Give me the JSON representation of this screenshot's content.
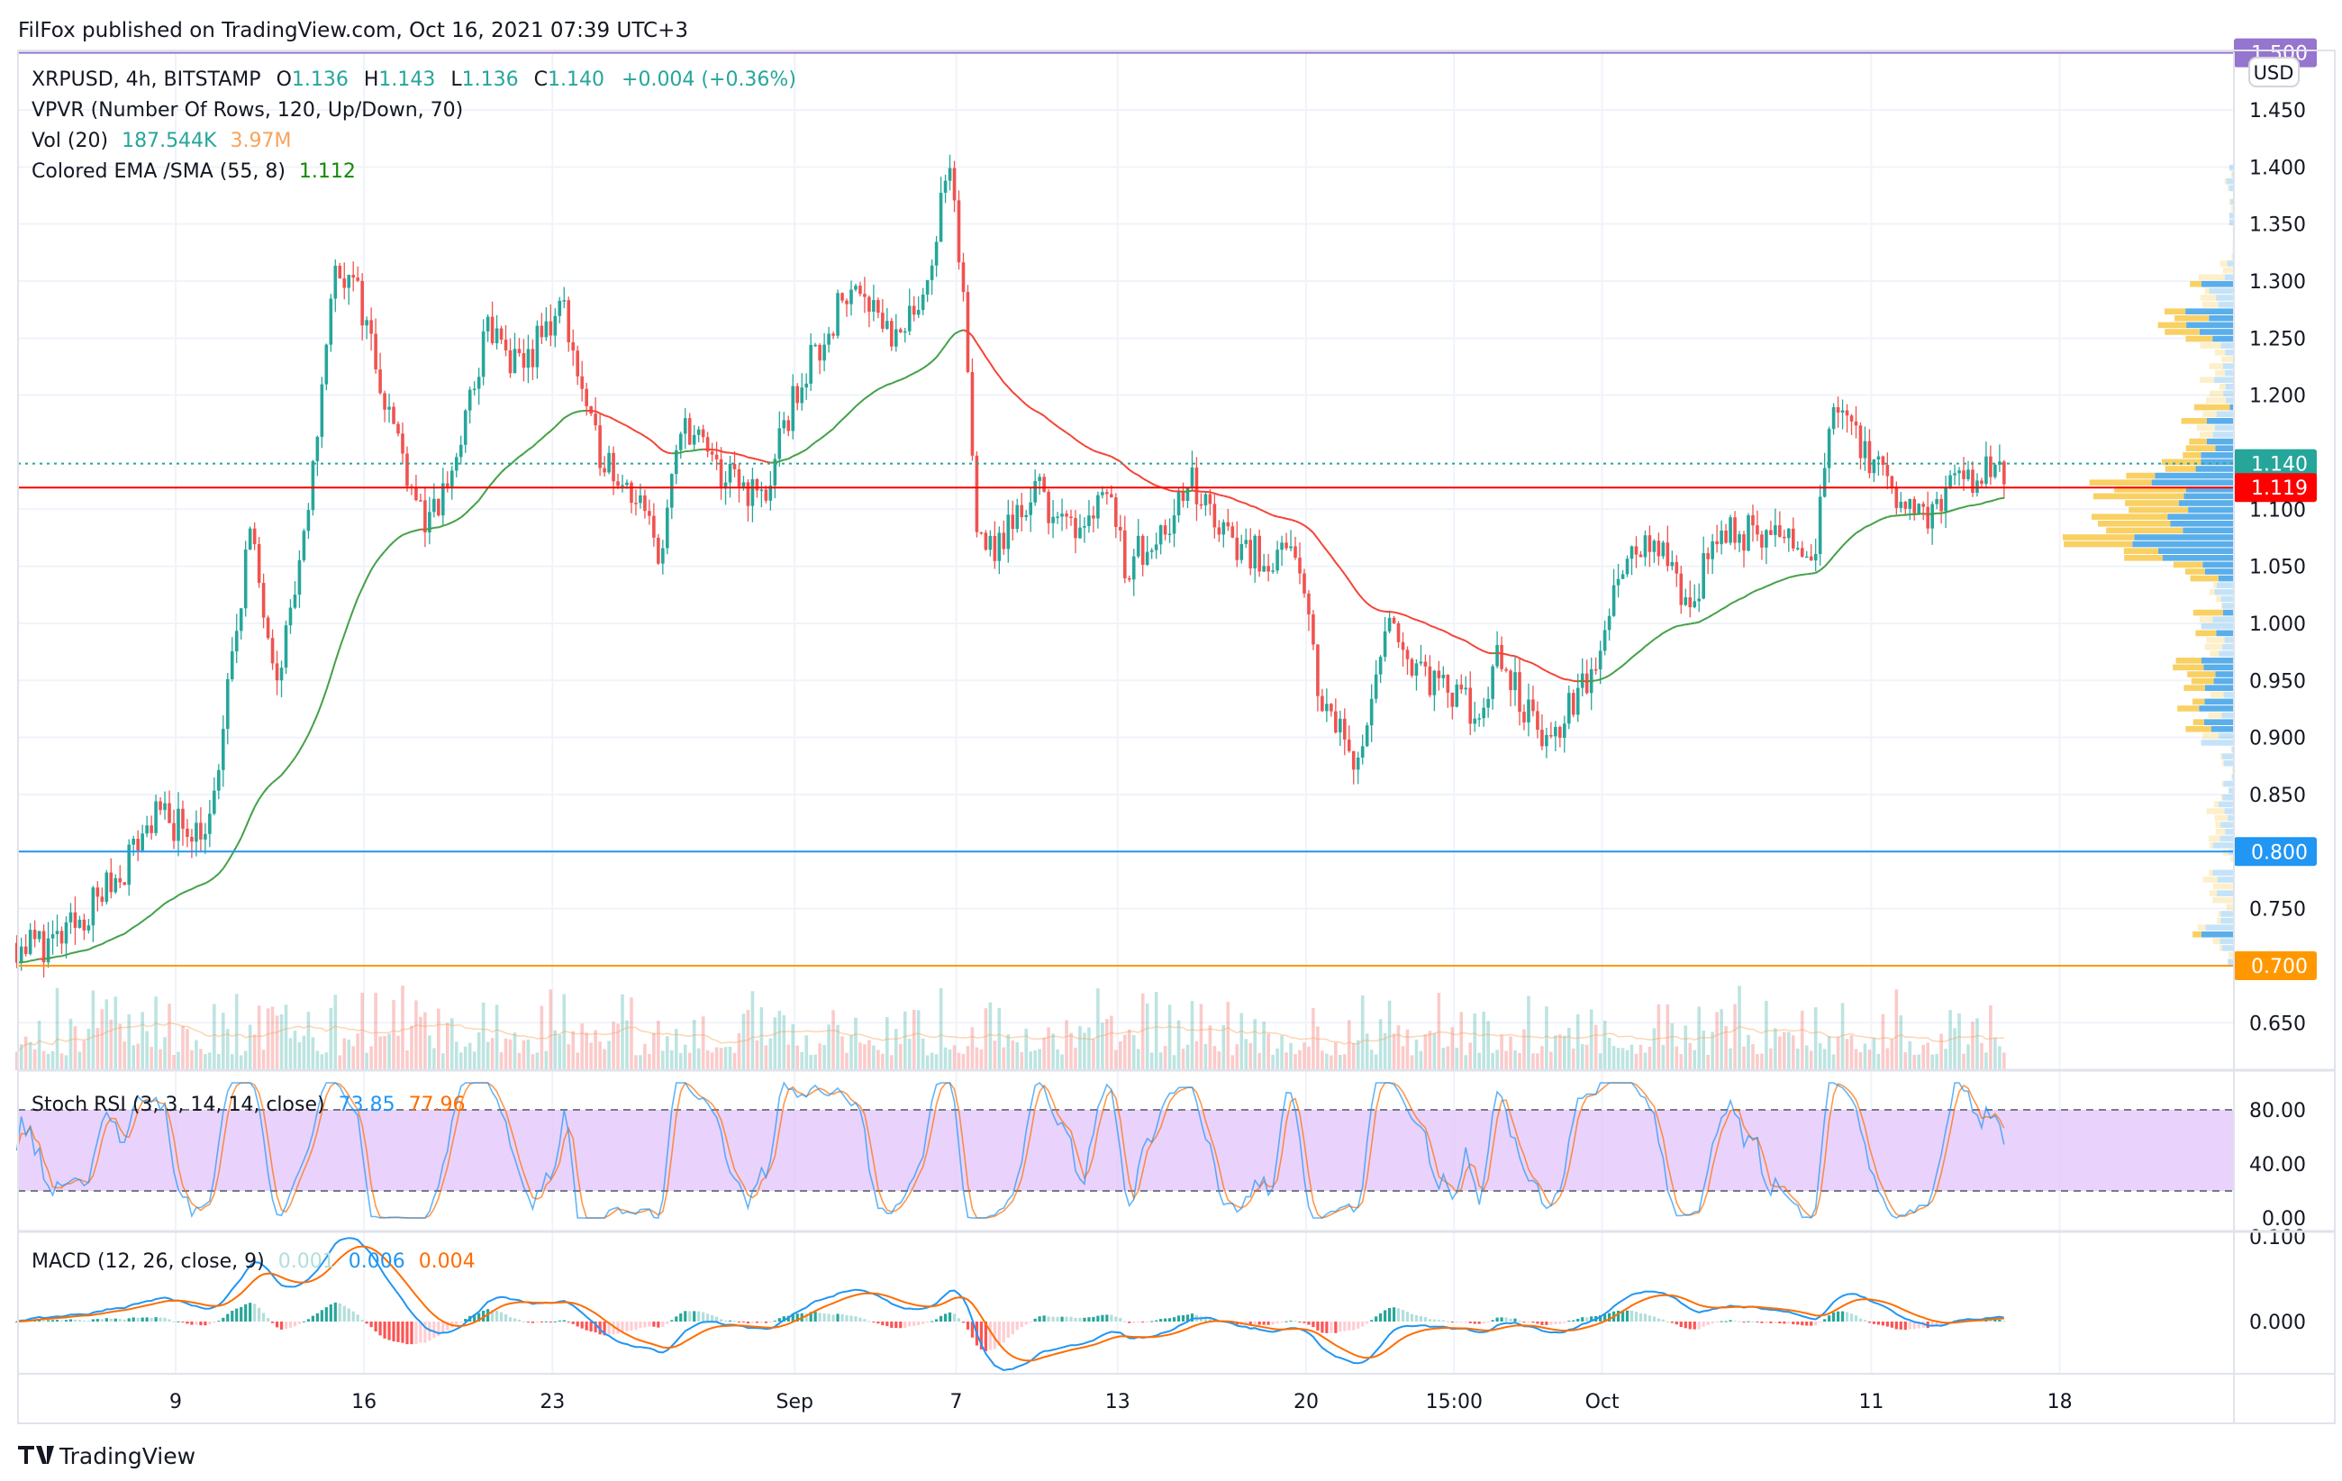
{
  "header": {
    "published": "FilFox published on TradingView.com, Oct 16, 2021 07:39 UTC+3"
  },
  "legend": {
    "symbol": "XRPUSD, 4h, BITSTAMP",
    "o_label": "O",
    "o": "1.136",
    "h_label": "H",
    "h": "1.143",
    "l_label": "L",
    "l": "1.136",
    "c_label": "C",
    "c": "1.140",
    "change": "+0.004 (+0.36%)",
    "vpvr": "VPVR (Number Of Rows, 120, Up/Down, 70)",
    "vol": "Vol (20)",
    "vol_value": "187.544K",
    "vol_ma": "3.97M",
    "ema": "Colored EMA /SMA (55, 8)",
    "ema_value": "1.112",
    "stoch": "Stoch RSI (3, 3, 14, 14, close)",
    "stoch_k": "73.85",
    "stoch_d": "77.96",
    "macd": "MACD (12, 26, close, 9)",
    "macd_hist": "0.001",
    "macd_line": "0.006",
    "macd_signal": "0.004"
  },
  "currency_button": "USD",
  "brand": "TradingView",
  "colors": {
    "up": "#26a69a",
    "down": "#ef5350",
    "ema_up": "#43a047",
    "ema_down": "#f44336",
    "vp_up": "#5aaeea",
    "vp_down": "#f9d063",
    "stoch_k": "#2196f3",
    "stoch_d": "#ff6d00",
    "macd": "#2196f3",
    "signal": "#ff6d00"
  },
  "chart_data": {
    "type": "candlestick",
    "title": "XRPUSD, 4h, BITSTAMP",
    "ylabel": "USD",
    "ylim": [
      0.62,
      1.5
    ],
    "price_ticks": [
      "1.450",
      "1.400",
      "1.350",
      "1.300",
      "1.250",
      "1.200",
      "1.100",
      "1.050",
      "1.000",
      "0.950",
      "0.900",
      "0.850",
      "0.750",
      "0.650"
    ],
    "x_ticks": [
      {
        "day": 9,
        "label": "9"
      },
      {
        "day": 16,
        "label": "16"
      },
      {
        "day": 23,
        "label": "23"
      },
      {
        "day": 32,
        "label": "Sep"
      },
      {
        "day": 38,
        "label": "7"
      },
      {
        "day": 44,
        "label": "13"
      },
      {
        "day": 51,
        "label": "20"
      },
      {
        "day": 56.5,
        "label": "15:00"
      },
      {
        "day": 62,
        "label": "Oct"
      },
      {
        "day": 72,
        "label": "11"
      },
      {
        "day": 79,
        "label": "18"
      }
    ],
    "price_anchors": [
      [
        3.1,
        0.72
      ],
      [
        4.7,
        0.72
      ],
      [
        6.9,
        0.78
      ],
      [
        8.1,
        0.83
      ],
      [
        10.3,
        0.82
      ],
      [
        11.7,
        1.08
      ],
      [
        12.8,
        0.96
      ],
      [
        13.9,
        1.08
      ],
      [
        14.5,
        1.23
      ],
      [
        15.0,
        1.32
      ],
      [
        15.9,
        1.28
      ],
      [
        17.0,
        1.18
      ],
      [
        18.4,
        1.08
      ],
      [
        19.5,
        1.15
      ],
      [
        20.6,
        1.26
      ],
      [
        21.7,
        1.22
      ],
      [
        23.4,
        1.28
      ],
      [
        24.5,
        1.16
      ],
      [
        25.9,
        1.12
      ],
      [
        27.0,
        1.06
      ],
      [
        27.9,
        1.18
      ],
      [
        29.2,
        1.13
      ],
      [
        30.9,
        1.11
      ],
      [
        32.0,
        1.2
      ],
      [
        33.7,
        1.28
      ],
      [
        34.5,
        1.3
      ],
      [
        35.9,
        1.24
      ],
      [
        37.1,
        1.32
      ],
      [
        37.7,
        1.4
      ],
      [
        38.3,
        1.28
      ],
      [
        38.7,
        1.1
      ],
      [
        39.3,
        1.06
      ],
      [
        41.0,
        1.12
      ],
      [
        42.1,
        1.08
      ],
      [
        43.7,
        1.12
      ],
      [
        44.3,
        1.05
      ],
      [
        45.4,
        1.08
      ],
      [
        46.8,
        1.12
      ],
      [
        48.2,
        1.07
      ],
      [
        50.7,
        1.05
      ],
      [
        51.6,
        0.93
      ],
      [
        53.0,
        0.88
      ],
      [
        54.1,
        1.0
      ],
      [
        55.2,
        0.96
      ],
      [
        56.0,
        0.94
      ],
      [
        57.4,
        0.92
      ],
      [
        58.2,
        0.97
      ],
      [
        59.9,
        0.89
      ],
      [
        61.0,
        0.93
      ],
      [
        61.9,
        0.97
      ],
      [
        62.7,
        1.06
      ],
      [
        63.8,
        1.07
      ],
      [
        65.2,
        1.02
      ],
      [
        66.6,
        1.08
      ],
      [
        67.7,
        1.08
      ],
      [
        69.9,
        1.06
      ],
      [
        70.6,
        1.2
      ],
      [
        71.2,
        1.18
      ],
      [
        72.5,
        1.12
      ],
      [
        73.0,
        1.09
      ],
      [
        74.1,
        1.1
      ],
      [
        75.5,
        1.13
      ],
      [
        77.1,
        1.14
      ]
    ],
    "levels": [
      {
        "price": 1.5,
        "label": "1.500",
        "color": "#9575cd"
      },
      {
        "price": 1.14,
        "label": "1.140",
        "color": "#26a69a",
        "dotted": true
      },
      {
        "price": 1.119,
        "label": "1.119",
        "color": "#ff0000"
      },
      {
        "price": 0.8,
        "label": "0.800",
        "color": "#2196f3"
      },
      {
        "price": 0.7,
        "label": "0.700",
        "color": "#ff9800"
      }
    ],
    "stoch_ticks": [
      "80.00",
      "40.00",
      "0.00"
    ],
    "macd_ticks": [
      "0.100",
      "0.000"
    ]
  }
}
